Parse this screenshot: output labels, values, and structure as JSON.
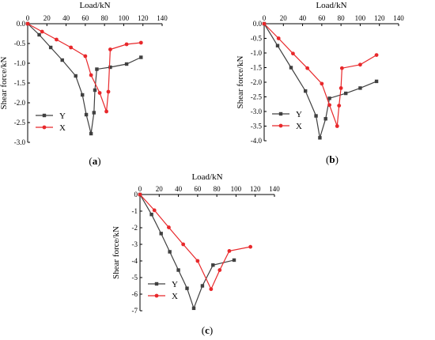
{
  "colors": {
    "series_Y": "#404040",
    "series_X": "#e8282b",
    "axis": "#000000"
  },
  "chart_data": [
    {
      "id": "a",
      "type": "line",
      "caption": "(a)",
      "xlabel": "Load/kN",
      "ylabel": "Shear force/kN",
      "x_axis_position": "top",
      "xlim": [
        0,
        140
      ],
      "ylim": [
        -3.0,
        0
      ],
      "xticks": [
        0,
        20,
        40,
        60,
        80,
        100,
        120,
        140
      ],
      "yticks": [
        "0.0",
        "-0.5",
        "-1.0",
        "-1.5",
        "-2.0",
        "-2.5",
        "-3.0"
      ],
      "yticks_values": [
        0,
        -0.5,
        -1.0,
        -1.5,
        -2.0,
        -2.5,
        -3.0
      ],
      "legend_position": "bottom-left",
      "series": [
        {
          "name": "Y",
          "marker": "square",
          "color": "#404040",
          "x": [
            0,
            12,
            24,
            36,
            50,
            57,
            61,
            66,
            69,
            70,
            72,
            86,
            103,
            118
          ],
          "y": [
            0,
            -0.28,
            -0.6,
            -0.92,
            -1.32,
            -1.8,
            -2.3,
            -2.78,
            -2.25,
            -1.68,
            -1.15,
            -1.1,
            -1.02,
            -0.85
          ]
        },
        {
          "name": "X",
          "marker": "circle",
          "color": "#e8282b",
          "x": [
            0,
            15,
            30,
            45,
            60,
            66,
            75,
            82,
            84,
            86,
            103,
            118
          ],
          "y": [
            0,
            -0.2,
            -0.4,
            -0.6,
            -0.82,
            -1.3,
            -1.75,
            -2.22,
            -1.72,
            -0.65,
            -0.52,
            -0.48
          ]
        }
      ]
    },
    {
      "id": "b",
      "type": "line",
      "caption": "(b)",
      "xlabel": "Load/kN",
      "ylabel": "Shear force/kN",
      "x_axis_position": "top",
      "xlim": [
        0,
        140
      ],
      "ylim": [
        -4.0,
        0
      ],
      "xticks": [
        0,
        20,
        40,
        60,
        80,
        100,
        120,
        140
      ],
      "yticks": [
        "0.0",
        "-0.5",
        "-1.0",
        "-1.5",
        "-2.0",
        "-2.5",
        "-3.0",
        "-3.5",
        "-4.0"
      ],
      "yticks_values": [
        0,
        -0.5,
        -1.0,
        -1.5,
        -2.0,
        -2.5,
        -3.0,
        -3.5,
        -4.0
      ],
      "legend_position": "bottom-left",
      "series": [
        {
          "name": "Y",
          "marker": "square",
          "color": "#404040",
          "x": [
            0,
            14,
            28,
            43,
            54,
            58,
            64,
            68,
            85,
            100,
            117
          ],
          "y": [
            0,
            -0.75,
            -1.5,
            -2.3,
            -3.15,
            -3.9,
            -3.25,
            -2.55,
            -2.38,
            -2.2,
            -1.97
          ]
        },
        {
          "name": "X",
          "marker": "circle",
          "color": "#e8282b",
          "x": [
            0,
            15,
            30,
            45,
            60,
            68,
            76,
            78,
            80,
            81,
            100,
            117
          ],
          "y": [
            0,
            -0.5,
            -1.02,
            -1.52,
            -2.05,
            -2.78,
            -3.5,
            -2.8,
            -2.2,
            -1.52,
            -1.4,
            -1.07
          ]
        }
      ]
    },
    {
      "id": "c",
      "type": "line",
      "caption": "(c)",
      "xlabel": "Load/kN",
      "ylabel": "Shear force/kN",
      "x_axis_position": "top",
      "xlim": [
        0,
        140
      ],
      "ylim": [
        -7,
        0
      ],
      "xticks": [
        0,
        20,
        40,
        60,
        80,
        100,
        120,
        140
      ],
      "yticks": [
        "0",
        "-1",
        "-2",
        "-3",
        "-4",
        "-5",
        "-6",
        "-7"
      ],
      "yticks_values": [
        0,
        -1,
        -2,
        -3,
        -4,
        -5,
        -6,
        -7
      ],
      "legend_position": "bottom-left",
      "series": [
        {
          "name": "Y",
          "marker": "square",
          "color": "#404040",
          "x": [
            0,
            12,
            22,
            31,
            40,
            49,
            56,
            65,
            76,
            98
          ],
          "y": [
            0,
            -1.2,
            -2.35,
            -3.45,
            -4.55,
            -5.65,
            -6.85,
            -5.5,
            -4.25,
            -3.95
          ]
        },
        {
          "name": "X",
          "marker": "circle",
          "color": "#e8282b",
          "x": [
            0,
            15,
            30,
            45,
            60,
            74,
            83,
            93,
            115
          ],
          "y": [
            0,
            -0.95,
            -1.98,
            -3.0,
            -4.0,
            -5.7,
            -4.55,
            -3.4,
            -3.15
          ]
        }
      ]
    }
  ]
}
